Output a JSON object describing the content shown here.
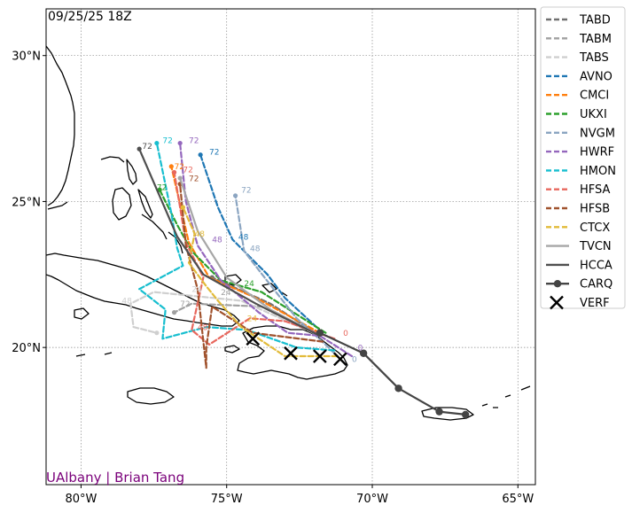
{
  "timestamp": "09/25/25 18Z",
  "credit": "UAlbany | Brian Tang",
  "axes": {
    "lon_ticks": [
      {
        "lon": -80,
        "label": "80°W"
      },
      {
        "lon": -75,
        "label": "75°W"
      },
      {
        "lon": -70,
        "label": "70°W"
      },
      {
        "lon": -65,
        "label": "65°W"
      }
    ],
    "lat_ticks": [
      {
        "lat": 30,
        "label": "30°N"
      },
      {
        "lat": 25,
        "label": "25°N"
      },
      {
        "lat": 20,
        "label": "20°N"
      }
    ],
    "lon_range": [
      -81.2,
      -64.4
    ],
    "lat_range": [
      15.3,
      31.6
    ],
    "grid": true
  },
  "colors": {
    "land_outline": "#000000",
    "grid": "#888888",
    "credit": "#7a007a"
  },
  "chart_data": {
    "type": "scatter",
    "legend_placement": "outside-right",
    "series": [
      {
        "name": "TABD",
        "color": "#707070",
        "dash": "dashed",
        "points": [
          [
            -71.8,
            20.4
          ],
          [
            -73.5,
            21.5
          ],
          [
            -75.5,
            22.4
          ]
        ],
        "labels": []
      },
      {
        "name": "TABM",
        "color": "#a0a0a0",
        "dash": "dashed",
        "points": [
          [
            -71.8,
            20.4
          ],
          [
            -73.8,
            21.4
          ],
          [
            -76.2,
            21.5
          ],
          [
            -76.8,
            21.2
          ]
        ],
        "labels": [
          {
            "text": "24",
            "lon": -75.2,
            "lat": 21.8
          },
          {
            "text": "72",
            "lon": -76.6,
            "lat": 21.4
          }
        ]
      },
      {
        "name": "TABS",
        "color": "#cfcfcf",
        "dash": "dashed",
        "points": [
          [
            -71.8,
            20.4
          ],
          [
            -74.5,
            21.6
          ],
          [
            -77.5,
            21.9
          ],
          [
            -78.3,
            21.5
          ],
          [
            -78.2,
            20.7
          ],
          [
            -77.4,
            20.5
          ]
        ],
        "labels": [
          {
            "text": "48",
            "lon": -78.6,
            "lat": 21.5
          },
          {
            "text": "24",
            "lon": -76.2,
            "lat": 21.9
          }
        ]
      },
      {
        "name": "AVNO",
        "color": "#1f77b4",
        "dash": "dashed",
        "points": [
          [
            -71.7,
            20.5
          ],
          [
            -73.0,
            21.7
          ],
          [
            -73.6,
            22.5
          ],
          [
            -74.8,
            23.7
          ],
          [
            -75.3,
            24.8
          ],
          [
            -75.9,
            26.6
          ]
        ],
        "labels": [
          {
            "text": "48",
            "lon": -74.6,
            "lat": 23.7
          },
          {
            "text": "72",
            "lon": -75.6,
            "lat": 26.6
          }
        ]
      },
      {
        "name": "CMCI",
        "color": "#ff7f0e",
        "dash": "dashed",
        "points": [
          [
            -71.8,
            20.5
          ],
          [
            -74.0,
            21.7
          ],
          [
            -75.6,
            22.4
          ],
          [
            -76.3,
            23.6
          ],
          [
            -76.9,
            26.2
          ]
        ],
        "labels": [
          {
            "text": "72",
            "lon": -76.8,
            "lat": 26.1
          }
        ]
      },
      {
        "name": "UKXI",
        "color": "#2ca02c",
        "dash": "dashed",
        "points": [
          [
            -71.6,
            20.5
          ],
          [
            -73.8,
            21.9
          ],
          [
            -75.2,
            22.3
          ],
          [
            -76.2,
            23.3
          ],
          [
            -76.7,
            24.2
          ],
          [
            -77.3,
            25.4
          ]
        ],
        "labels": [
          {
            "text": "24",
            "lon": -74.4,
            "lat": 22.1
          },
          {
            "text": "72",
            "lon": -77.4,
            "lat": 25.4
          }
        ]
      },
      {
        "name": "NVGM",
        "color": "#8ba5c1",
        "dash": "dashed",
        "points": [
          [
            -70.9,
            19.4
          ],
          [
            -71.5,
            20.0
          ],
          [
            -72.6,
            21.0
          ],
          [
            -73.7,
            22.4
          ],
          [
            -74.4,
            23.3
          ],
          [
            -74.7,
            25.2
          ]
        ],
        "labels": [
          {
            "text": "0",
            "lon": -70.7,
            "lat": 19.5
          },
          {
            "text": "48",
            "lon": -74.2,
            "lat": 23.3
          },
          {
            "text": "72",
            "lon": -74.5,
            "lat": 25.3
          }
        ]
      },
      {
        "name": "HWRF",
        "color": "#9467bd",
        "dash": "dashed",
        "points": [
          [
            -70.7,
            19.7
          ],
          [
            -71.8,
            20.4
          ],
          [
            -72.9,
            20.5
          ],
          [
            -73.9,
            21.2
          ],
          [
            -75.2,
            22.3
          ],
          [
            -76.0,
            23.5
          ],
          [
            -76.4,
            25.0
          ],
          [
            -76.6,
            27.0
          ]
        ],
        "labels": [
          {
            "text": "0",
            "lon": -70.5,
            "lat": 19.9
          },
          {
            "text": "48",
            "lon": -75.5,
            "lat": 23.6
          },
          {
            "text": "72",
            "lon": -76.3,
            "lat": 27.0
          }
        ]
      },
      {
        "name": "HMON",
        "color": "#17becf",
        "dash": "dashed",
        "points": [
          [
            -71.3,
            19.9
          ],
          [
            -72.6,
            20.0
          ],
          [
            -74.3,
            20.6
          ],
          [
            -75.7,
            20.7
          ],
          [
            -77.2,
            20.3
          ],
          [
            -77.1,
            21.3
          ],
          [
            -78.0,
            22.0
          ],
          [
            -76.5,
            22.8
          ],
          [
            -76.7,
            23.4
          ],
          [
            -76.9,
            24.6
          ],
          [
            -77.4,
            27.0
          ]
        ],
        "labels": [
          {
            "text": "72",
            "lon": -77.2,
            "lat": 27.0
          }
        ]
      },
      {
        "name": "HFSA",
        "color": "#e8675d",
        "dash": "dashed",
        "points": [
          [
            -71.3,
            20.3
          ],
          [
            -73.0,
            20.9
          ],
          [
            -74.2,
            21.0
          ],
          [
            -75.6,
            20.1
          ],
          [
            -76.2,
            20.6
          ],
          [
            -75.8,
            22.4
          ],
          [
            -76.4,
            23.6
          ],
          [
            -76.8,
            26.0
          ]
        ],
        "labels": [
          {
            "text": "0",
            "lon": -71.0,
            "lat": 20.4
          },
          {
            "text": "48",
            "lon": -76.0,
            "lat": 20.6
          },
          {
            "text": "72",
            "lon": -76.5,
            "lat": 26.0
          }
        ]
      },
      {
        "name": "HFSB",
        "color": "#a0522d",
        "dash": "dashed",
        "points": [
          [
            -71.7,
            20.2
          ],
          [
            -74.1,
            20.5
          ],
          [
            -75.5,
            21.4
          ],
          [
            -75.7,
            20.0
          ],
          [
            -75.7,
            19.3
          ],
          [
            -76.0,
            22.0
          ],
          [
            -76.4,
            23.5
          ],
          [
            -76.6,
            25.6
          ]
        ],
        "labels": [
          {
            "text": "72",
            "lon": -76.3,
            "lat": 25.7
          }
        ]
      },
      {
        "name": "CTCX",
        "color": "#e2bb3a",
        "dash": "dashed",
        "points": [
          [
            -71.2,
            19.7
          ],
          [
            -73.0,
            19.7
          ],
          [
            -74.5,
            20.7
          ],
          [
            -75.3,
            21.6
          ],
          [
            -75.7,
            22.1
          ],
          [
            -76.3,
            22.9
          ],
          [
            -76.1,
            23.9
          ],
          [
            -76.5,
            24.8
          ]
        ],
        "labels": [
          {
            "text": "24",
            "lon": -74.3,
            "lat": 20.9
          },
          {
            "text": "48",
            "lon": -76.1,
            "lat": 23.8
          }
        ]
      },
      {
        "name": "TVCN",
        "color": "#a6a6a6",
        "dash": "solid",
        "points": [
          [
            -71.8,
            20.4
          ],
          [
            -73.5,
            21.3
          ],
          [
            -75.0,
            22.4
          ],
          [
            -76.0,
            24.0
          ],
          [
            -76.6,
            25.8
          ]
        ],
        "labels": []
      },
      {
        "name": "HCCA",
        "color": "#4f4f4f",
        "dash": "solid",
        "points": [
          [
            -71.8,
            20.4
          ],
          [
            -74.0,
            21.5
          ],
          [
            -75.8,
            22.5
          ],
          [
            -76.7,
            23.8
          ],
          [
            -78.0,
            26.8
          ]
        ],
        "labels": [
          {
            "text": "72",
            "lon": -77.9,
            "lat": 26.8
          }
        ]
      },
      {
        "name": "CARQ",
        "color": "#444444",
        "dash": "solid",
        "marker": "dot",
        "points": [
          [
            -71.8,
            20.5
          ],
          [
            -70.3,
            19.8
          ],
          [
            -69.1,
            18.6
          ],
          [
            -67.7,
            17.8
          ],
          [
            -66.8,
            17.7
          ]
        ],
        "labels": []
      },
      {
        "name": "VERF",
        "color": "#000000",
        "marker": "x",
        "points": [
          [
            -74.1,
            20.3
          ],
          [
            -72.8,
            19.8
          ],
          [
            -71.8,
            19.7
          ],
          [
            -71.1,
            19.6
          ]
        ],
        "labels": []
      }
    ]
  }
}
